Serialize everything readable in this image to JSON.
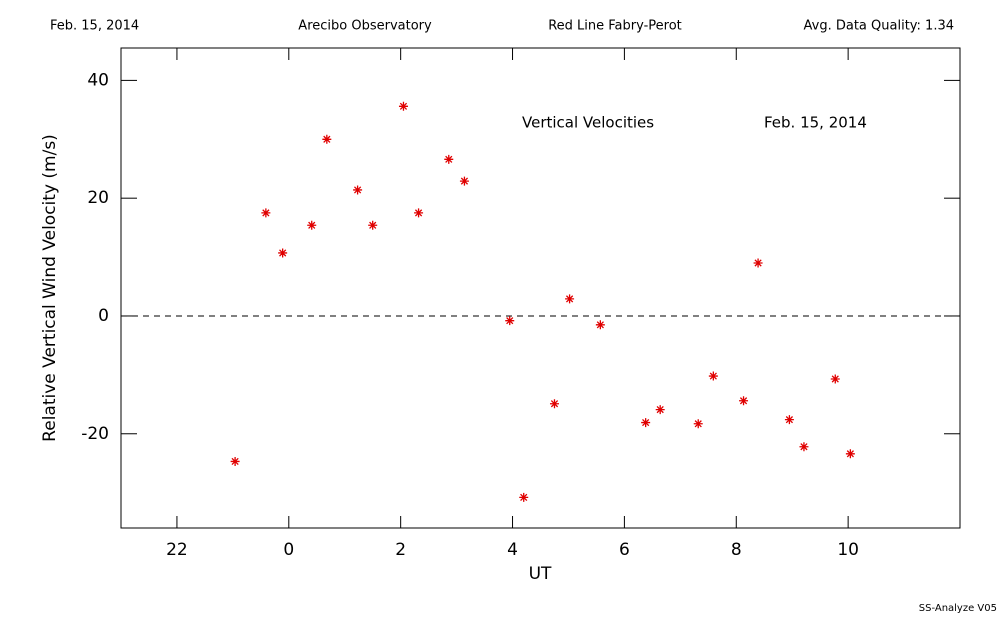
{
  "header": {
    "date": "Feb. 15, 2014",
    "site": "Arecibo Observatory",
    "instrument": "Red Line Fabry-Perot",
    "quality": "Avg. Data Quality: 1.34"
  },
  "footer": "SS-Analyze V05",
  "chart_data": {
    "type": "scatter",
    "annotations": [
      "Vertical Velocities",
      "Feb. 15, 2014"
    ],
    "x_label": "UT",
    "y_label": "Relative Vertical Wind Velocity (m/s)",
    "xlim": [
      -3,
      12
    ],
    "ylim": [
      -36,
      45.5
    ],
    "xticks": [
      {
        "value": -2,
        "label": "22"
      },
      0,
      2,
      4,
      6,
      8,
      10
    ],
    "yticks": [
      -20,
      0,
      20,
      40
    ],
    "hline": 0,
    "color": "#e00000",
    "x": [
      -0.96,
      -0.41,
      -0.11,
      0.41,
      0.68,
      1.23,
      1.5,
      2.05,
      2.32,
      2.86,
      3.14,
      3.95,
      4.2,
      4.75,
      5.02,
      5.57,
      6.38,
      6.64,
      7.32,
      7.59,
      8.13,
      8.39,
      8.95,
      9.21,
      9.77,
      10.04
    ],
    "values": [
      -24.7,
      17.5,
      10.7,
      15.4,
      30.0,
      21.4,
      15.4,
      35.6,
      17.5,
      26.6,
      22.9,
      -0.8,
      -30.8,
      -14.9,
      2.9,
      -1.5,
      -18.1,
      -15.9,
      -18.3,
      -10.2,
      -14.4,
      9.0,
      -17.6,
      -22.2,
      -10.7,
      -23.4
    ]
  }
}
